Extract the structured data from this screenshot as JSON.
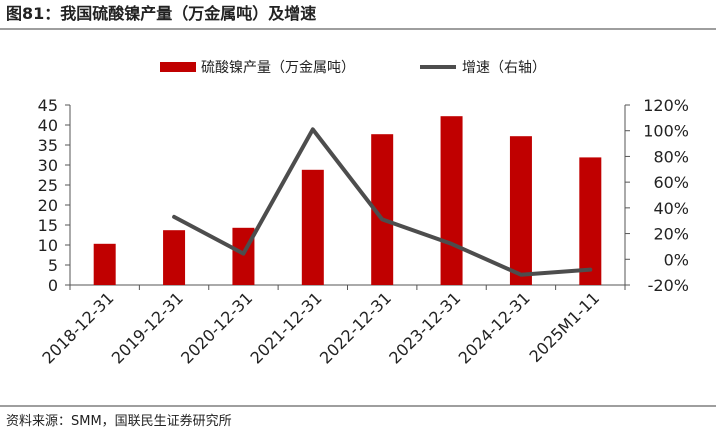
{
  "figure": {
    "title": "图81：我国硫酸镍产量（万金属吨）及增速",
    "source": "资料来源：SMM，国联民生证券研究所"
  },
  "chart_data": {
    "type": "bar",
    "categories": [
      "2018-12-31",
      "2019-12-31",
      "2020-12-31",
      "2021-12-31",
      "2022-12-31",
      "2023-12-31",
      "2024-12-31",
      "2025M1-11"
    ],
    "series": [
      {
        "name": "硫酸镍产量（万金属吨）",
        "type": "bar",
        "axis": "left",
        "color": "#c00000",
        "values": [
          10.3,
          13.7,
          14.3,
          28.8,
          37.7,
          42.2,
          37.2,
          31.9
        ]
      },
      {
        "name": "增速（右轴）",
        "type": "line",
        "axis": "right",
        "color": "#4d4d4d",
        "values": [
          null,
          33,
          4.4,
          101,
          31,
          12,
          -12,
          -8
        ]
      }
    ],
    "y_left": {
      "min": 0,
      "max": 45,
      "step": 5,
      "tick_labels": [
        "0",
        "5",
        "10",
        "15",
        "20",
        "25",
        "30",
        "35",
        "40",
        "45"
      ]
    },
    "y_right": {
      "min": -20,
      "max": 120,
      "step": 20,
      "tick_labels": [
        "-20%",
        "0%",
        "20%",
        "40%",
        "60%",
        "80%",
        "100%",
        "120%"
      ]
    },
    "legend": "top",
    "grid": false
  }
}
